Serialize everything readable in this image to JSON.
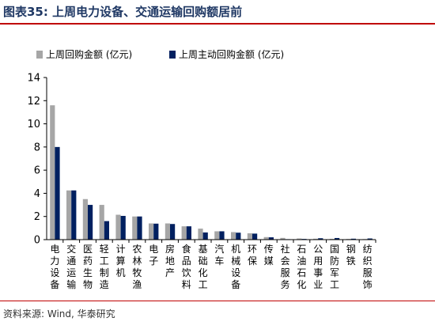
{
  "figure": {
    "title": "图表35:  上周电力设备、交通运输回购额居前",
    "source": "资料来源: Wind, 华泰研究"
  },
  "chart_data": {
    "type": "bar",
    "categories": [
      "电力设备",
      "交通运输",
      "医药生物",
      "轻工制造",
      "计算机",
      "农林牧渔",
      "电子",
      "房地产",
      "食品饮料",
      "基础化工",
      "汽车",
      "机械设备",
      "环保",
      "传媒",
      "社会服务",
      "石油石化",
      "公用事业",
      "国防军工",
      "钢铁",
      "纺织服饰"
    ],
    "series": [
      {
        "name": "上周回购金额 (亿元)",
        "color": "#a6a6a6",
        "values": [
          11.6,
          4.25,
          3.5,
          3.0,
          2.15,
          2.0,
          1.4,
          1.4,
          1.15,
          0.95,
          0.72,
          0.65,
          0.55,
          0.22,
          0.15,
          0.1,
          0.08,
          0.07,
          0.06,
          0.05
        ]
      },
      {
        "name": "上周主动回购金额 (亿元)",
        "color": "#002060",
        "values": [
          8.0,
          4.25,
          3.0,
          1.6,
          2.05,
          2.0,
          1.38,
          1.35,
          1.15,
          0.62,
          0.72,
          0.6,
          0.52,
          0.2,
          0.04,
          0.06,
          0.12,
          0.14,
          0.08,
          0.1
        ]
      }
    ],
    "yticks": [
      0,
      2,
      4,
      6,
      8,
      10,
      12,
      14
    ],
    "ylim": [
      0,
      14
    ],
    "grid": false,
    "legend_position": "top-left"
  }
}
